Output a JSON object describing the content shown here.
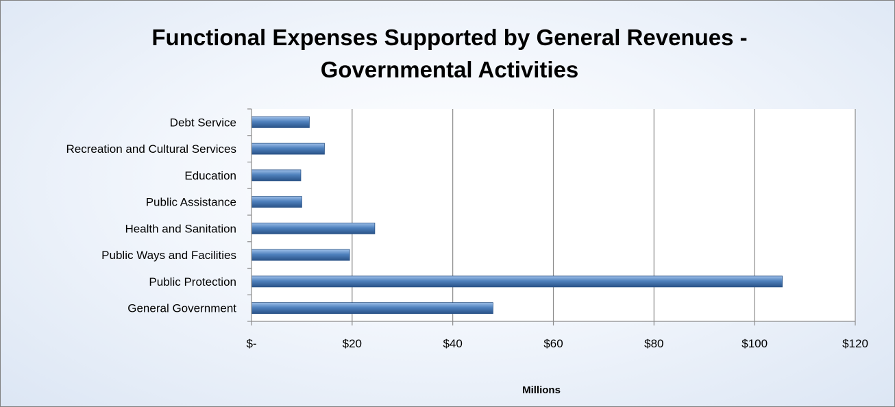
{
  "chart_data": {
    "type": "bar",
    "orientation": "horizontal",
    "title_lines": [
      "Functional Expenses Supported by General Revenues -",
      "Governmental Activities"
    ],
    "xlabel": "Millions",
    "ylabel": "",
    "categories": [
      "Debt Service",
      "Recreation and Cultural Services",
      "Education",
      "Public Assistance",
      "Health and Sanitation",
      "Public Ways and Facilities",
      "Public Protection",
      "General Government"
    ],
    "values": [
      11.5,
      14.5,
      9.8,
      10.0,
      24.5,
      19.5,
      105.5,
      48.0
    ],
    "xlim": [
      0,
      120
    ],
    "x_ticks": [
      0,
      20,
      40,
      60,
      80,
      100,
      120
    ],
    "x_tick_labels": [
      "$-",
      "$20",
      "$40",
      "$60",
      "$80",
      "$100",
      "$120"
    ],
    "grid": "vertical major gridlines",
    "legend": "none",
    "colors": {
      "bar_fill": "#4f81bd",
      "bar_highlight": "#9dbfe8",
      "bar_shadow": "#2a5388",
      "gridline": "#8c8c8c",
      "axis": "#8c8c8c"
    }
  }
}
